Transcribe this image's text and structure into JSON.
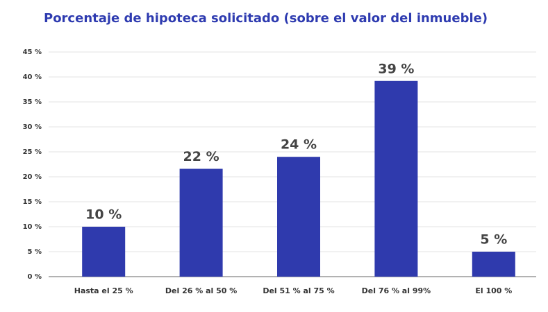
{
  "chart_data": {
    "type": "bar",
    "title": "Porcentaje de hipoteca solicitado (sobre el valor del inmueble)",
    "categories": [
      "Hasta el 25 %",
      "Del 26 % al 50 %",
      "Del 51 % al 75 %",
      "Del 76 % al 99%",
      "El 100 %"
    ],
    "values": [
      10,
      21.6,
      24,
      39.2,
      5
    ],
    "value_labels": [
      "10 %",
      "22 %",
      "24 %",
      "39 %",
      "5 %"
    ],
    "color": "#2f3aad",
    "ylim": [
      0,
      45
    ],
    "yticks": [
      {
        "value": 0,
        "label": "0 %"
      },
      {
        "value": 5,
        "label": "5 %"
      },
      {
        "value": 10,
        "label": "10 %"
      },
      {
        "value": 15,
        "label": "15 %"
      },
      {
        "value": 20,
        "label": "20 %"
      },
      {
        "value": 25,
        "label": "25 %"
      },
      {
        "value": 30,
        "label": "30 %"
      },
      {
        "value": 35,
        "label": "35 %"
      },
      {
        "value": 40,
        "label": "40 %"
      },
      {
        "value": 45,
        "label": "45 %"
      }
    ],
    "grid": true
  }
}
